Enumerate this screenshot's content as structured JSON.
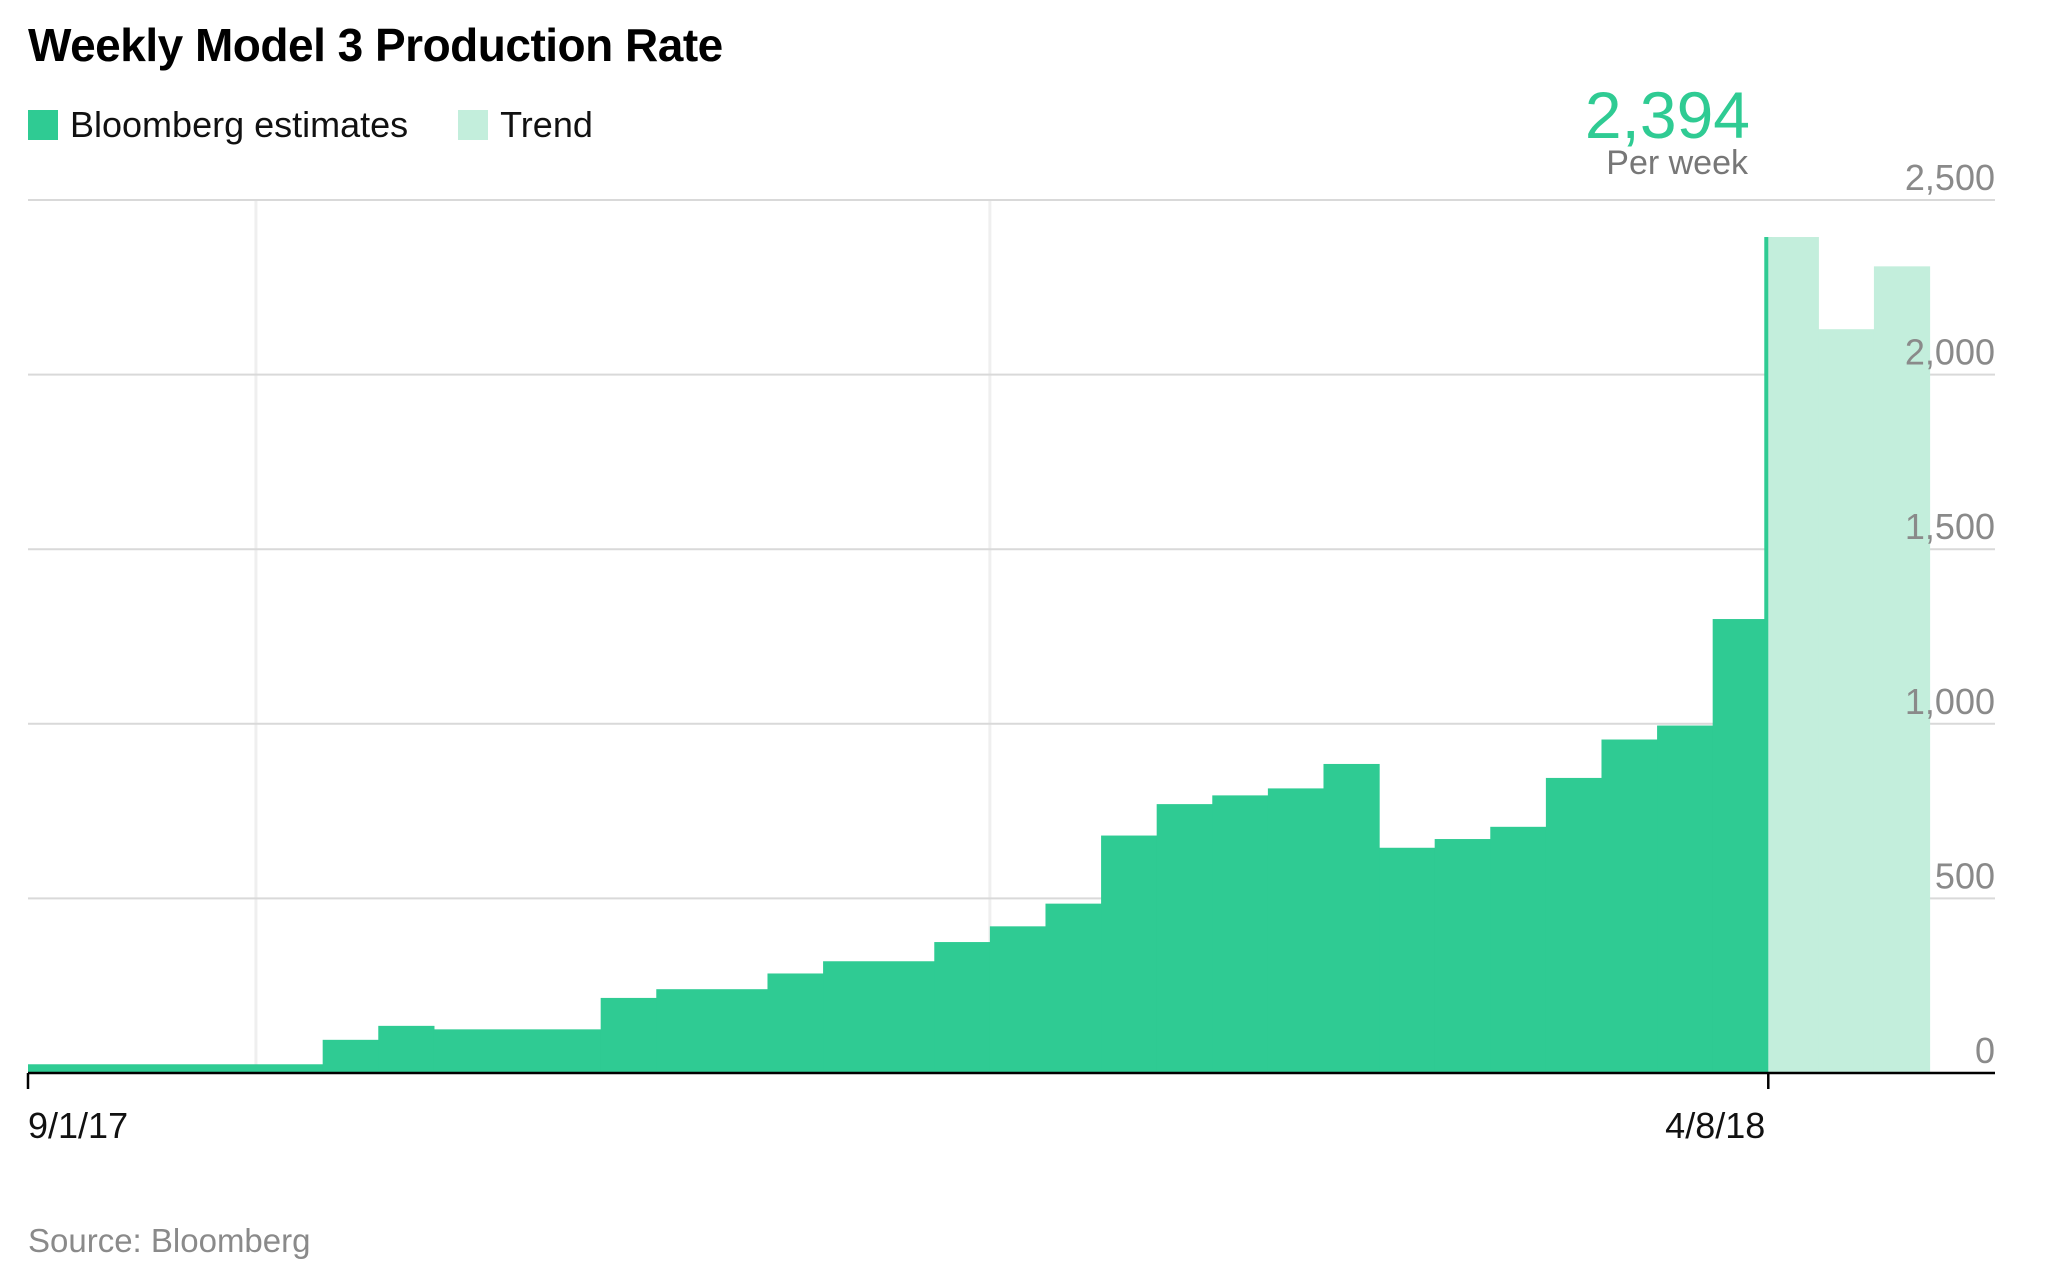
{
  "chart_data": {
    "type": "bar",
    "title": "Weekly Model 3 Production Rate",
    "ylim": [
      0,
      2500
    ],
    "yticks": [
      "2,500",
      "2,000",
      "1,500",
      "1,000",
      "500",
      "0"
    ],
    "ytick_values": [
      2500,
      2000,
      1500,
      1000,
      500,
      0
    ],
    "xticks": [
      {
        "label": "9/1/17",
        "week_index": 0
      },
      {
        "label": "4/8/18",
        "week_index": 31.3
      }
    ],
    "total_weeks": 34.2,
    "vertical_gridlines_at_week": [
      4.1,
      17.3
    ],
    "legend": [
      {
        "label": "Bloomberg estimates",
        "color": "#2fcb93"
      },
      {
        "label": "Trend",
        "color": "#c3eedc"
      }
    ],
    "series": [
      {
        "name": "Bloomberg estimates",
        "color": "#2fcb93",
        "steps": [
          {
            "start": 0,
            "end": 5.3,
            "value": 25
          },
          {
            "start": 5.3,
            "end": 6.3,
            "value": 95
          },
          {
            "start": 6.3,
            "end": 7.3,
            "value": 135
          },
          {
            "start": 7.3,
            "end": 10.3,
            "value": 125
          },
          {
            "start": 10.3,
            "end": 11.3,
            "value": 215
          },
          {
            "start": 11.3,
            "end": 13.3,
            "value": 240
          },
          {
            "start": 13.3,
            "end": 14.3,
            "value": 285
          },
          {
            "start": 14.3,
            "end": 16.3,
            "value": 320
          },
          {
            "start": 16.3,
            "end": 17.3,
            "value": 375
          },
          {
            "start": 17.3,
            "end": 18.3,
            "value": 420
          },
          {
            "start": 18.3,
            "end": 19.3,
            "value": 485
          },
          {
            "start": 19.3,
            "end": 20.3,
            "value": 680
          },
          {
            "start": 20.3,
            "end": 21.3,
            "value": 770
          },
          {
            "start": 21.3,
            "end": 22.3,
            "value": 795
          },
          {
            "start": 22.3,
            "end": 23.3,
            "value": 815
          },
          {
            "start": 23.3,
            "end": 24.3,
            "value": 885
          },
          {
            "start": 24.3,
            "end": 25.3,
            "value": 645
          },
          {
            "start": 25.3,
            "end": 26.3,
            "value": 670
          },
          {
            "start": 26.3,
            "end": 27.3,
            "value": 705
          },
          {
            "start": 27.3,
            "end": 28.3,
            "value": 845
          },
          {
            "start": 28.3,
            "end": 29.3,
            "value": 955
          },
          {
            "start": 29.3,
            "end": 30.3,
            "value": 995
          },
          {
            "start": 30.3,
            "end": 31.3,
            "value": 1300
          }
        ],
        "spike": {
          "week": 31.3,
          "value": 2394
        }
      },
      {
        "name": "Trend",
        "color": "#c3eedc",
        "steps": [
          {
            "start": 31.3,
            "end": 32.2,
            "value": 2394
          },
          {
            "start": 32.2,
            "end": 33.2,
            "value": 2130
          },
          {
            "start": 33.2,
            "end": 34.2,
            "value": 2310
          }
        ]
      }
    ],
    "annotation": {
      "value": "2,394",
      "unit": "Per week"
    },
    "source": "Source: Bloomberg",
    "colors": {
      "accent": "#2fcb93",
      "trend": "#c3eedc",
      "grid": "#d9d9d9",
      "axis": "#000000",
      "tick_text": "#8a8a8a"
    }
  }
}
